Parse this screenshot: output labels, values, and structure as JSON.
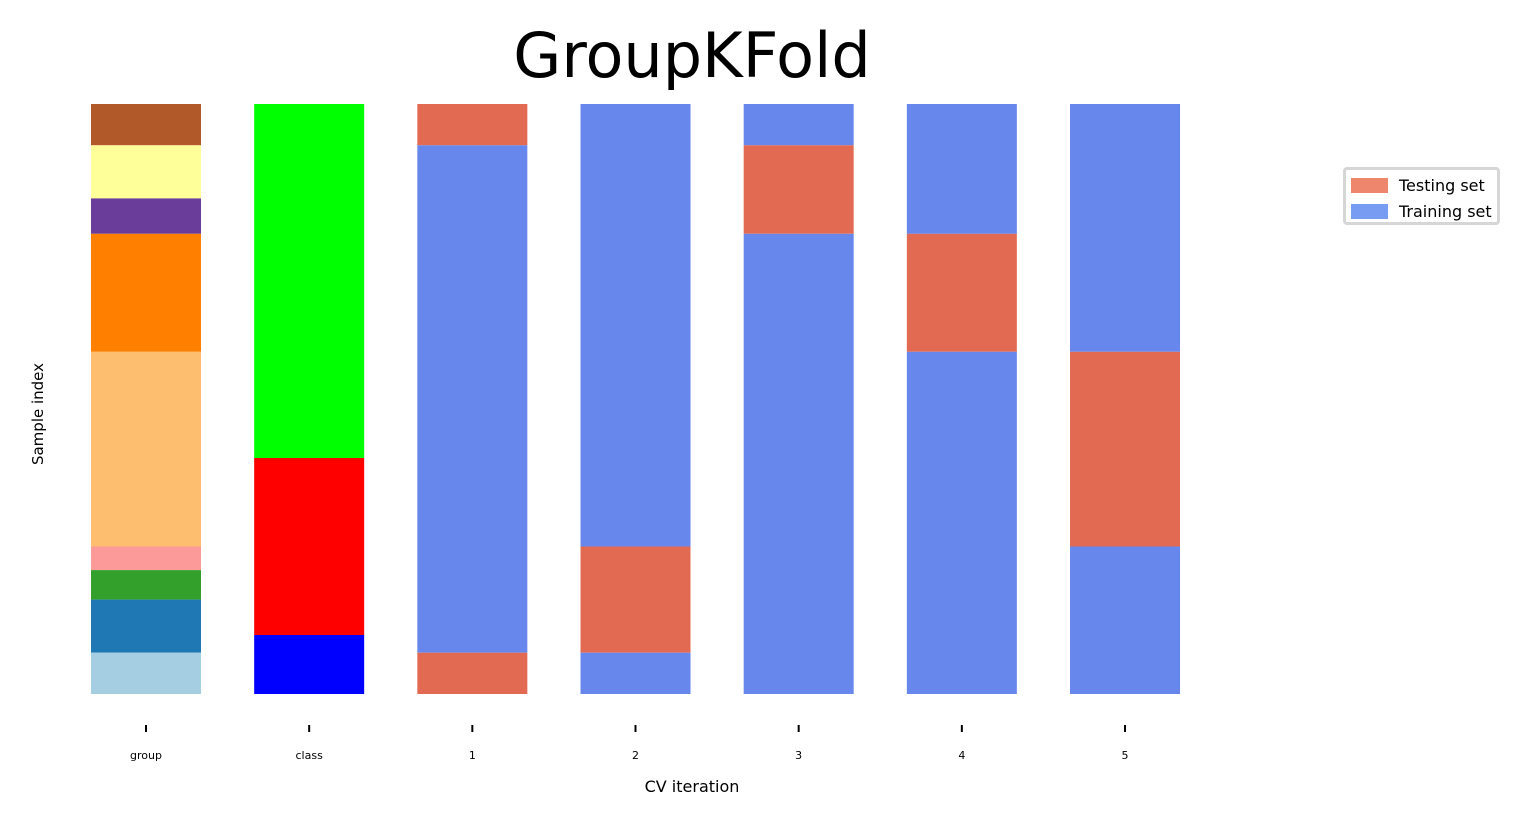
{
  "chart_data": {
    "type": "bar",
    "title": "GroupKFold",
    "xlabel": "CV iteration",
    "ylabel": "Sample index",
    "grid": false,
    "legend_placement": "right",
    "n_samples": 100,
    "columns": [
      {
        "label": "group",
        "segments": [
          {
            "start": 0,
            "end": 7,
            "color": "#b15928"
          },
          {
            "start": 7,
            "end": 16,
            "color": "#ffff99"
          },
          {
            "start": 16,
            "end": 22,
            "color": "#6a3d9a"
          },
          {
            "start": 22,
            "end": 42,
            "color": "#ff7f00"
          },
          {
            "start": 42,
            "end": 75,
            "color": "#fdbf6f"
          },
          {
            "start": 75,
            "end": 79,
            "color": "#fb9a99"
          },
          {
            "start": 79,
            "end": 84,
            "color": "#33a02c"
          },
          {
            "start": 84,
            "end": 93,
            "color": "#1f78b4"
          },
          {
            "start": 93,
            "end": 100,
            "color": "#a6cee3"
          }
        ]
      },
      {
        "label": "class",
        "segments": [
          {
            "start": 0,
            "end": 60,
            "color": "#00ff00"
          },
          {
            "start": 60,
            "end": 90,
            "color": "#ff0000"
          },
          {
            "start": 90,
            "end": 100,
            "color": "#0000ff"
          }
        ]
      },
      {
        "label": "1",
        "segments": [
          {
            "start": 0,
            "end": 7,
            "set": "test"
          },
          {
            "start": 7,
            "end": 93,
            "set": "train"
          },
          {
            "start": 93,
            "end": 100,
            "set": "test"
          }
        ]
      },
      {
        "label": "2",
        "segments": [
          {
            "start": 0,
            "end": 75,
            "set": "train"
          },
          {
            "start": 75,
            "end": 93,
            "set": "test"
          },
          {
            "start": 93,
            "end": 100,
            "set": "train"
          }
        ]
      },
      {
        "label": "3",
        "segments": [
          {
            "start": 0,
            "end": 7,
            "set": "train"
          },
          {
            "start": 7,
            "end": 22,
            "set": "test"
          },
          {
            "start": 22,
            "end": 100,
            "set": "train"
          }
        ]
      },
      {
        "label": "4",
        "segments": [
          {
            "start": 0,
            "end": 22,
            "set": "train"
          },
          {
            "start": 22,
            "end": 42,
            "set": "test"
          },
          {
            "start": 42,
            "end": 100,
            "set": "train"
          }
        ]
      },
      {
        "label": "5",
        "segments": [
          {
            "start": 0,
            "end": 42,
            "set": "train"
          },
          {
            "start": 42,
            "end": 75,
            "set": "test"
          },
          {
            "start": 75,
            "end": 100,
            "set": "train"
          }
        ]
      }
    ],
    "set_colors": {
      "test": "#e26a53",
      "train": "#6787ed"
    },
    "legend": [
      {
        "label": "Testing set",
        "color": "#ed866c"
      },
      {
        "label": "Training set",
        "color": "#789cf2"
      }
    ]
  }
}
